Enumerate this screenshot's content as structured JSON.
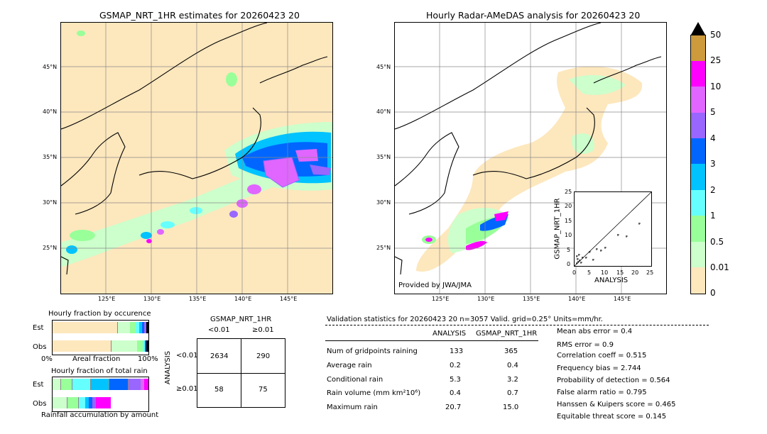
{
  "left_map": {
    "title": "GSMAP_NRT_1HR estimates for 20260423 20",
    "lat_labels": [
      "45°N",
      "40°N",
      "35°N",
      "30°N",
      "25°N"
    ],
    "lon_labels": [
      "125°E",
      "130°E",
      "135°E",
      "140°E",
      "145°E"
    ]
  },
  "right_map": {
    "title": "Hourly Radar-AMeDAS analysis for 20260423 20",
    "lat_labels": [
      "45°N",
      "40°N",
      "35°N",
      "30°N",
      "25°N"
    ],
    "lon_labels": [
      "125°E",
      "130°E",
      "135°E",
      "140°E",
      "145°E"
    ],
    "credit": "Provided by JWA/JMA"
  },
  "scatter_inset": {
    "xlabel": "ANALYSIS",
    "ylabel": "GSMAP_NRT_1HR",
    "ticks": [
      "0",
      "5",
      "10",
      "15",
      "20",
      "25"
    ]
  },
  "colorbar": {
    "labels": [
      "50",
      "25",
      "10",
      "5",
      "4",
      "3",
      "2",
      "1",
      "0.5",
      "0.01",
      "0"
    ],
    "colors": [
      "#cd9a3c",
      "#ff00ff",
      "#e066ff",
      "#9966ff",
      "#0066ff",
      "#00c3ff",
      "#66ffff",
      "#99ff99",
      "#ccffcc",
      "#fde7bd"
    ]
  },
  "fraction_occurrence": {
    "title": "Hourly fraction by occurence",
    "rows": [
      "Est",
      "Obs"
    ],
    "xlabels": [
      "0%",
      "Areal fraction",
      "100%"
    ]
  },
  "fraction_total": {
    "title": "Hourly fraction of total rain",
    "rows": [
      "Est",
      "Obs"
    ],
    "footer": "Rainfall accumulation by amount"
  },
  "contingency": {
    "title": "GSMAP_NRT_1HR",
    "col_headers": [
      "<0.01",
      "≥0.01"
    ],
    "row_axis": "ANALYSIS",
    "row_headers": [
      "<0.01",
      "≥0.01"
    ],
    "cells": [
      [
        "2634",
        "290"
      ],
      [
        "58",
        "75"
      ]
    ]
  },
  "validation": {
    "header": "Validation statistics for 20260423 20  n=3057 Valid. grid=0.25° Units=mm/hr.",
    "col_analysis": "ANALYSIS",
    "col_gsmap": "GSMAP_NRT_1HR",
    "rows": [
      {
        "label": "Num of gridpoints raining",
        "analysis": "133",
        "gsmap": "365"
      },
      {
        "label": "Average rain",
        "analysis": "0.2",
        "gsmap": "0.4"
      },
      {
        "label": "Conditional rain",
        "analysis": "5.3",
        "gsmap": "3.2"
      },
      {
        "label": "Rain volume (mm km²10⁶)",
        "analysis": "0.4",
        "gsmap": "0.7"
      },
      {
        "label": "Maximum rain",
        "analysis": "20.7",
        "gsmap": "15.0"
      }
    ],
    "scores": [
      "Mean abs error =    0.4",
      "RMS error =    0.9",
      "Correlation coeff =  0.515",
      "Frequency bias =  2.744",
      "Probability of detection =  0.564",
      "False alarm ratio =  0.795",
      "Hanssen & Kuipers score =  0.465",
      "Equitable threat score =  0.145"
    ]
  }
}
